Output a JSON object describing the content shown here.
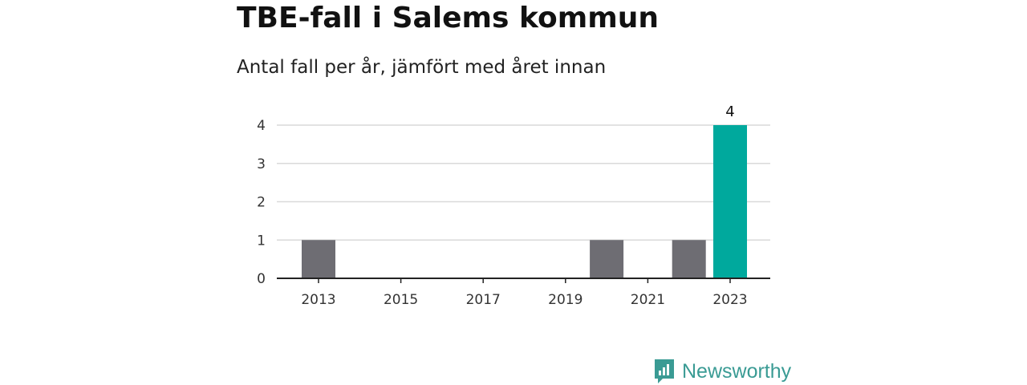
{
  "chart_data": {
    "type": "bar",
    "title": "TBE-fall i Salems kommun",
    "subtitle": "Antal fall per år, jämfört med året innan",
    "xlabel": "",
    "ylabel": "",
    "x": [
      2013,
      2014,
      2015,
      2016,
      2017,
      2018,
      2019,
      2020,
      2021,
      2022,
      2023
    ],
    "values": [
      1,
      0,
      0,
      0,
      0,
      0,
      0,
      1,
      0,
      1,
      4
    ],
    "highlight": 2023,
    "x_ticks": [
      "2013",
      "2015",
      "2017",
      "2019",
      "2021",
      "2023"
    ],
    "y_ticks": [
      "0",
      "1",
      "2",
      "3",
      "4"
    ],
    "ylim": [
      0,
      4
    ],
    "grid": true,
    "data_labels": [
      {
        "x": 2023,
        "text": "4"
      }
    ],
    "colors": {
      "bar": "#6e6d73",
      "highlight": "#00a99d",
      "grid": "#d9d9d9",
      "axis": "#222222"
    }
  },
  "brand": {
    "name": "Newsworthy",
    "icon": "newsworthy-logo-icon",
    "color": "#3a9b94"
  }
}
